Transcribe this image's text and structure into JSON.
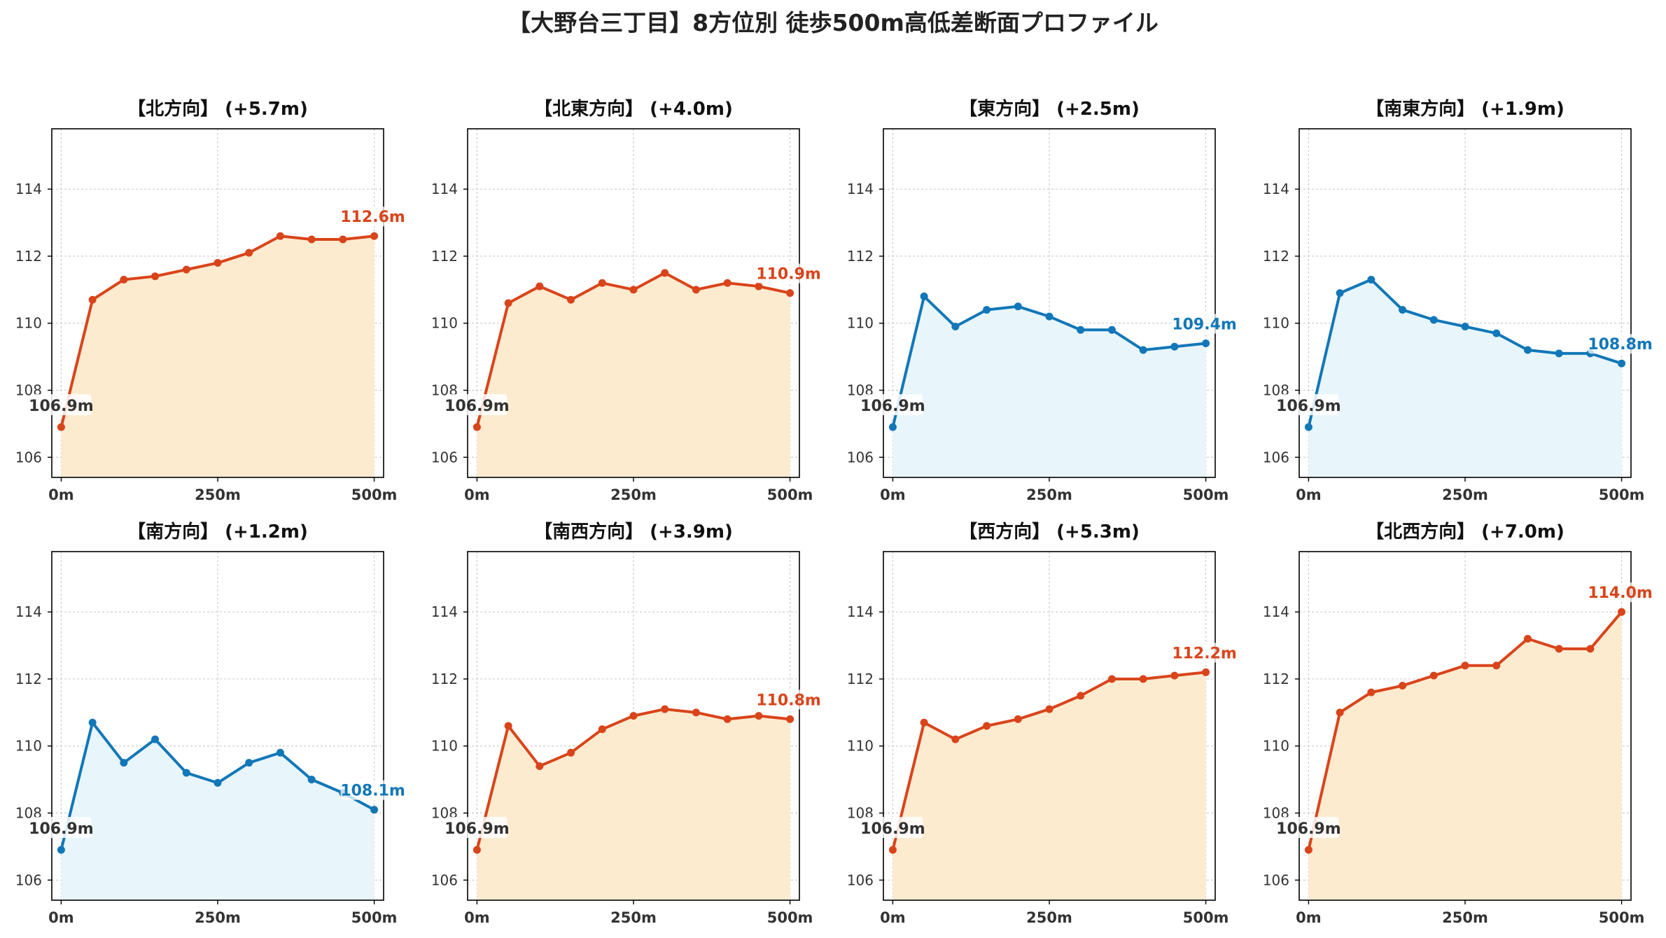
{
  "title": "【大野台三丁目】8方位別 徒歩500m高低差断面プロファイル",
  "colors": {
    "up_line": "#d9441a",
    "up_fill": "#fdebd0",
    "down_line": "#1177b8",
    "down_fill": "#e8f5fb",
    "start_label": "#333333",
    "grid": "#cccccc",
    "axis": "#000000",
    "tick_text": "#333333"
  },
  "chart_data": [
    {
      "type": "area",
      "title": "【北方向】 (+5.7m)",
      "trend": "up",
      "x": [
        0,
        50,
        100,
        150,
        200,
        250,
        300,
        350,
        400,
        450,
        500
      ],
      "y": [
        106.9,
        110.7,
        111.3,
        111.4,
        111.6,
        111.8,
        112.1,
        112.6,
        112.5,
        112.5,
        112.6
      ],
      "start_label": "106.9m",
      "end_label": "112.6m",
      "xlim": [
        -15,
        515
      ],
      "ylim": [
        105.4,
        115.8
      ],
      "x_ticks": [
        0,
        250,
        500
      ],
      "x_tick_labels": [
        "0m",
        "250m",
        "500m"
      ],
      "y_ticks": [
        106,
        108,
        110,
        112,
        114
      ],
      "y_tick_labels": [
        "106",
        "108",
        "110",
        "112",
        "114"
      ],
      "grid": true
    },
    {
      "type": "area",
      "title": "【北東方向】 (+4.0m)",
      "trend": "up",
      "x": [
        0,
        50,
        100,
        150,
        200,
        250,
        300,
        350,
        400,
        450,
        500
      ],
      "y": [
        106.9,
        110.6,
        111.1,
        110.7,
        111.2,
        111.0,
        111.5,
        111.0,
        111.2,
        111.1,
        110.9
      ],
      "start_label": "106.9m",
      "end_label": "110.9m",
      "xlim": [
        -15,
        515
      ],
      "ylim": [
        105.4,
        115.8
      ],
      "x_ticks": [
        0,
        250,
        500
      ],
      "x_tick_labels": [
        "0m",
        "250m",
        "500m"
      ],
      "y_ticks": [
        106,
        108,
        110,
        112,
        114
      ],
      "y_tick_labels": [
        "106",
        "108",
        "110",
        "112",
        "114"
      ],
      "grid": true
    },
    {
      "type": "area",
      "title": "【東方向】 (+2.5m)",
      "trend": "down",
      "x": [
        0,
        50,
        100,
        150,
        200,
        250,
        300,
        350,
        400,
        450,
        500
      ],
      "y": [
        106.9,
        110.8,
        109.9,
        110.4,
        110.5,
        110.2,
        109.8,
        109.8,
        109.2,
        109.3,
        109.4
      ],
      "start_label": "106.9m",
      "end_label": "109.4m",
      "xlim": [
        -15,
        515
      ],
      "ylim": [
        105.4,
        115.8
      ],
      "x_ticks": [
        0,
        250,
        500
      ],
      "x_tick_labels": [
        "0m",
        "250m",
        "500m"
      ],
      "y_ticks": [
        106,
        108,
        110,
        112,
        114
      ],
      "y_tick_labels": [
        "106",
        "108",
        "110",
        "112",
        "114"
      ],
      "grid": true
    },
    {
      "type": "area",
      "title": "【南東方向】 (+1.9m)",
      "trend": "down",
      "x": [
        0,
        50,
        100,
        150,
        200,
        250,
        300,
        350,
        400,
        450,
        500
      ],
      "y": [
        106.9,
        110.9,
        111.3,
        110.4,
        110.1,
        109.9,
        109.7,
        109.2,
        109.1,
        109.1,
        108.8
      ],
      "start_label": "106.9m",
      "end_label": "108.8m",
      "xlim": [
        -15,
        515
      ],
      "ylim": [
        105.4,
        115.8
      ],
      "x_ticks": [
        0,
        250,
        500
      ],
      "x_tick_labels": [
        "0m",
        "250m",
        "500m"
      ],
      "y_ticks": [
        106,
        108,
        110,
        112,
        114
      ],
      "y_tick_labels": [
        "106",
        "108",
        "110",
        "112",
        "114"
      ],
      "grid": true
    },
    {
      "type": "area",
      "title": "【南方向】 (+1.2m)",
      "trend": "down",
      "x": [
        0,
        50,
        100,
        150,
        200,
        250,
        300,
        350,
        400,
        450,
        500
      ],
      "y": [
        106.9,
        110.7,
        109.5,
        110.2,
        109.2,
        108.9,
        109.5,
        109.8,
        109.0,
        108.6,
        108.1
      ],
      "start_label": "106.9m",
      "end_label": "108.1m",
      "xlim": [
        -15,
        515
      ],
      "ylim": [
        105.4,
        115.8
      ],
      "x_ticks": [
        0,
        250,
        500
      ],
      "x_tick_labels": [
        "0m",
        "250m",
        "500m"
      ],
      "y_ticks": [
        106,
        108,
        110,
        112,
        114
      ],
      "y_tick_labels": [
        "106",
        "108",
        "110",
        "112",
        "114"
      ],
      "grid": true
    },
    {
      "type": "area",
      "title": "【南西方向】 (+3.9m)",
      "trend": "up",
      "x": [
        0,
        50,
        100,
        150,
        200,
        250,
        300,
        350,
        400,
        450,
        500
      ],
      "y": [
        106.9,
        110.6,
        109.4,
        109.8,
        110.5,
        110.9,
        111.1,
        111.0,
        110.8,
        110.9,
        110.8
      ],
      "start_label": "106.9m",
      "end_label": "110.8m",
      "xlim": [
        -15,
        515
      ],
      "ylim": [
        105.4,
        115.8
      ],
      "x_ticks": [
        0,
        250,
        500
      ],
      "x_tick_labels": [
        "0m",
        "250m",
        "500m"
      ],
      "y_ticks": [
        106,
        108,
        110,
        112,
        114
      ],
      "y_tick_labels": [
        "106",
        "108",
        "110",
        "112",
        "114"
      ],
      "grid": true
    },
    {
      "type": "area",
      "title": "【西方向】 (+5.3m)",
      "trend": "up",
      "x": [
        0,
        50,
        100,
        150,
        200,
        250,
        300,
        350,
        400,
        450,
        500
      ],
      "y": [
        106.9,
        110.7,
        110.2,
        110.6,
        110.8,
        111.1,
        111.5,
        112.0,
        112.0,
        112.1,
        112.2
      ],
      "start_label": "106.9m",
      "end_label": "112.2m",
      "xlim": [
        -15,
        515
      ],
      "ylim": [
        105.4,
        115.8
      ],
      "x_ticks": [
        0,
        250,
        500
      ],
      "x_tick_labels": [
        "0m",
        "250m",
        "500m"
      ],
      "y_ticks": [
        106,
        108,
        110,
        112,
        114
      ],
      "y_tick_labels": [
        "106",
        "108",
        "110",
        "112",
        "114"
      ],
      "grid": true
    },
    {
      "type": "area",
      "title": "【北西方向】 (+7.0m)",
      "trend": "up",
      "x": [
        0,
        50,
        100,
        150,
        200,
        250,
        300,
        350,
        400,
        450,
        500
      ],
      "y": [
        106.9,
        111.0,
        111.6,
        111.8,
        112.1,
        112.4,
        112.4,
        113.2,
        112.9,
        112.9,
        114.0
      ],
      "start_label": "106.9m",
      "end_label": "114.0m",
      "xlim": [
        -15,
        515
      ],
      "ylim": [
        105.4,
        115.8
      ],
      "x_ticks": [
        0,
        250,
        500
      ],
      "x_tick_labels": [
        "0m",
        "250m",
        "500m"
      ],
      "y_ticks": [
        106,
        108,
        110,
        112,
        114
      ],
      "y_tick_labels": [
        "106",
        "108",
        "110",
        "112",
        "114"
      ],
      "grid": true
    }
  ]
}
